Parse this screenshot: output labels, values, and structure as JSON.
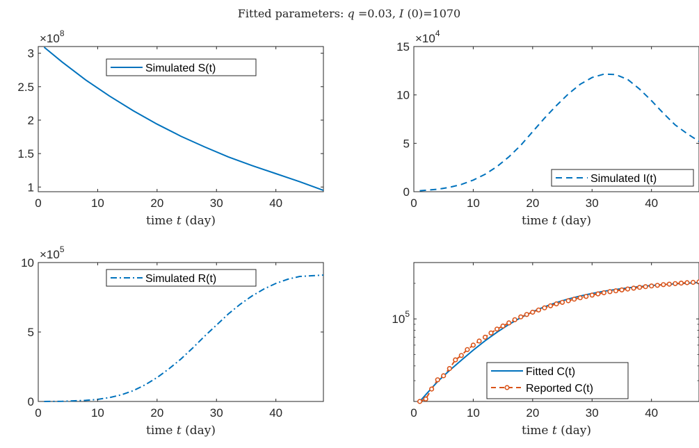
{
  "suptitle": {
    "prefix": "Fitted parameters: ",
    "q_symbol": "q",
    "q_value": "=0.03, ",
    "i0_symbol": "I",
    "i0_value": "(0)=1070"
  },
  "colors": {
    "blue": "#0072BD",
    "orange": "#D95319",
    "axis": "#262626",
    "background": "#ffffff"
  },
  "chart_data": [
    {
      "id": "S",
      "type": "line",
      "xlabel": {
        "prefix": "time ",
        "var": "t",
        "suffix": " (day)"
      },
      "xlim": [
        0,
        48
      ],
      "xticks": [
        0,
        10,
        20,
        30,
        40
      ],
      "ylim": [
        0.93,
        3.1
      ],
      "yticks": [
        1,
        1.5,
        2,
        2.5,
        3
      ],
      "ytick_labels": [
        "1",
        "1.5",
        "2",
        "2.5",
        "3"
      ],
      "yexponent": {
        "base": "×10",
        "power": "8"
      },
      "legend": {
        "placement": "top-center"
      },
      "series": [
        {
          "name": "Simulated S(t)",
          "style": "solid",
          "x": [
            1,
            4,
            8,
            12,
            16,
            20,
            24,
            28,
            32,
            36,
            40,
            44,
            48
          ],
          "y": [
            3.09,
            2.87,
            2.6,
            2.36,
            2.14,
            1.94,
            1.76,
            1.6,
            1.45,
            1.32,
            1.2,
            1.08,
            0.95
          ]
        }
      ]
    },
    {
      "id": "I",
      "type": "line",
      "xlabel": {
        "prefix": "time ",
        "var": "t",
        "suffix": " (day)"
      },
      "xlim": [
        0,
        48
      ],
      "xticks": [
        0,
        10,
        20,
        30,
        40
      ],
      "ylim": [
        0,
        15
      ],
      "yticks": [
        0,
        5,
        10,
        15
      ],
      "ytick_labels": [
        "0",
        "5",
        "10",
        "15"
      ],
      "yexponent": {
        "base": "×10",
        "power": "4"
      },
      "legend": {
        "placement": "bottom-right"
      },
      "series": [
        {
          "name": "Simulated I(t)",
          "style": "dashed",
          "x": [
            1,
            4,
            6,
            8,
            10,
            12,
            14,
            16,
            18,
            20,
            22,
            24,
            26,
            28,
            30,
            32,
            34,
            36,
            38,
            40,
            42,
            44,
            46,
            48
          ],
          "y": [
            0.1,
            0.25,
            0.45,
            0.75,
            1.2,
            1.8,
            2.6,
            3.6,
            4.8,
            6.2,
            7.6,
            8.9,
            10.1,
            11.1,
            11.8,
            12.15,
            12.1,
            11.6,
            10.6,
            9.4,
            8.1,
            6.9,
            6.0,
            5.2
          ]
        }
      ]
    },
    {
      "id": "R",
      "type": "line",
      "xlabel": {
        "prefix": "time ",
        "var": "t",
        "suffix": " (day)"
      },
      "xlim": [
        0,
        48
      ],
      "xticks": [
        0,
        10,
        20,
        30,
        40
      ],
      "ylim": [
        0,
        10
      ],
      "yticks": [
        0,
        5,
        10
      ],
      "ytick_labels": [
        "0",
        "5",
        "10"
      ],
      "yexponent": {
        "base": "×10",
        "power": "5"
      },
      "legend": {
        "placement": "top-center"
      },
      "series": [
        {
          "name": "Simulated R(t)",
          "style": "dashdot",
          "x": [
            1,
            4,
            8,
            10,
            12,
            14,
            16,
            18,
            20,
            22,
            24,
            26,
            28,
            30,
            32,
            34,
            36,
            38,
            40,
            42,
            44,
            46,
            48
          ],
          "y": [
            0,
            0.01,
            0.08,
            0.15,
            0.28,
            0.48,
            0.78,
            1.2,
            1.72,
            2.35,
            3.05,
            3.85,
            4.7,
            5.5,
            6.3,
            7.0,
            7.6,
            8.1,
            8.5,
            8.8,
            9.0,
            9.05,
            9.1
          ]
        }
      ]
    },
    {
      "id": "C",
      "type": "line",
      "yscale": "log",
      "xlabel": {
        "prefix": "time ",
        "var": "t",
        "suffix": " (day)"
      },
      "xlim": [
        0,
        48
      ],
      "xticks": [
        0,
        10,
        20,
        30,
        40
      ],
      "ylim": [
        20000,
        300000
      ],
      "yticks": [
        100000
      ],
      "ytick_labels": [
        {
          "base": "10",
          "power": "5"
        }
      ],
      "legend": {
        "placement": "bottom-center"
      },
      "series": [
        {
          "name": "Fitted C(t)",
          "style": "solid",
          "color": "blue",
          "x": [
            1,
            2,
            4,
            6,
            8,
            10,
            12,
            14,
            16,
            18,
            20,
            22,
            24,
            26,
            28,
            30,
            32,
            34,
            36,
            38,
            40,
            42,
            44,
            46,
            48
          ],
          "y": [
            20000,
            22800,
            29500,
            36600,
            44700,
            54400,
            65300,
            77100,
            89800,
            102500,
            115000,
            126700,
            137600,
            147400,
            156300,
            164300,
            171400,
            177500,
            182900,
            187700,
            191700,
            195200,
            198200,
            200800,
            203000
          ]
        },
        {
          "name": "Reported C(t)",
          "style": "dashed-markers",
          "color": "orange",
          "x": [
            1,
            2,
            3,
            4,
            5,
            6,
            7,
            8,
            9,
            10,
            11,
            12,
            13,
            14,
            15,
            16,
            17,
            18,
            19,
            20,
            21,
            22,
            23,
            24,
            25,
            26,
            27,
            28,
            29,
            30,
            31,
            32,
            33,
            34,
            35,
            36,
            37,
            38,
            39,
            40,
            41,
            42,
            43,
            44,
            45,
            46,
            47,
            48
          ],
          "y": [
            20000,
            21000,
            25500,
            30500,
            33000,
            38000,
            45000,
            49000,
            55000,
            60000,
            65000,
            70000,
            76000,
            82000,
            87000,
            92500,
            98500,
            104000,
            109000,
            114000,
            119000,
            124000,
            129000,
            134000,
            138000,
            142500,
            147000,
            151000,
            155000,
            159000,
            163000,
            166500,
            170000,
            173000,
            176000,
            179000,
            182000,
            185000,
            187500,
            190000,
            192500,
            195000,
            197000,
            199000,
            201000,
            202500,
            204000,
            205500
          ]
        }
      ]
    }
  ]
}
